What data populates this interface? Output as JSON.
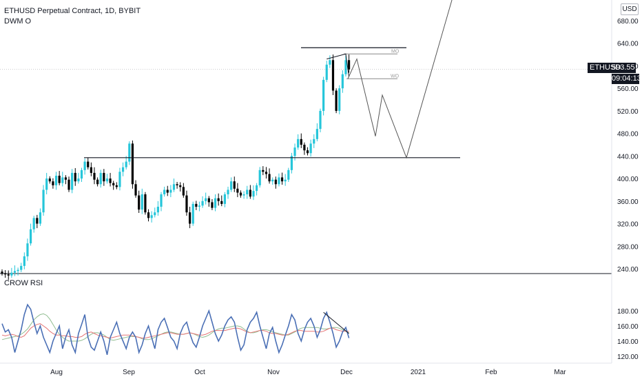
{
  "header": {
    "title": "ETHUSD Perpetual Contract, 1D, BYBIT",
    "indicator": "DWM O",
    "currency": "USD"
  },
  "price_label": {
    "symbol": "ETHUSD",
    "price": "593.55",
    "countdown": "09:04:13"
  },
  "rsi_panel": {
    "title": "CROW RSI"
  },
  "colors": {
    "up": "#26c6da",
    "down": "#000000",
    "rsi_main": "#4a6fb5",
    "rsi_ma1": "#8fbc8f",
    "rsi_ma2": "#e57373",
    "line": "#131722"
  },
  "chart_data": [
    {
      "type": "candlestick",
      "title": "ETHUSD Perpetual Contract, 1D, BYBIT",
      "x_ticks": [
        "Aug",
        "Sep",
        "Oct",
        "Nov",
        "Dec",
        "2021",
        "Feb",
        "Mar"
      ],
      "y_ticks": [
        240,
        280,
        320,
        360,
        400,
        440,
        480,
        520,
        560,
        600,
        640,
        680
      ],
      "ylim": [
        230,
        700
      ],
      "closes": [
        232,
        230,
        228,
        233,
        236,
        238,
        245,
        262,
        285,
        310,
        330,
        320,
        340,
        380,
        400,
        395,
        388,
        405,
        392,
        402,
        398,
        380,
        410,
        395,
        400,
        415,
        430,
        420,
        410,
        398,
        390,
        410,
        395,
        400,
        392,
        388,
        385,
        412,
        420,
        430,
        462,
        390,
        370,
        345,
        372,
        340,
        330,
        335,
        340,
        350,
        372,
        380,
        375,
        380,
        390,
        388,
        385,
        370,
        340,
        320,
        355,
        350,
        352,
        360,
        365,
        358,
        348,
        365,
        360,
        355,
        372,
        380,
        395,
        382,
        375,
        370,
        372,
        380,
        368,
        378,
        388,
        415,
        412,
        408,
        395,
        398,
        390,
        402,
        395,
        398,
        415,
        440,
        455,
        470,
        460,
        450,
        445,
        462,
        470,
        488,
        520,
        575,
        602,
        610,
        556,
        520,
        560,
        585,
        610,
        593.55
      ],
      "levels": [
        {
          "name": "resistance",
          "value": 437
        },
        {
          "name": "top",
          "value": 632
        },
        {
          "name": "MO",
          "value": 621,
          "label": "MO"
        },
        {
          "name": "WO",
          "value": 577,
          "label": "WO"
        }
      ],
      "projection": [
        [
          607,
          492
        ],
        [
          612,
          612
        ],
        [
          625,
          475
        ],
        [
          630,
          548
        ],
        [
          641,
          437
        ],
        [
          661,
          725
        ]
      ],
      "last_price": 593.55
    },
    {
      "type": "line",
      "title": "CROW RSI",
      "y_ticks": [
        120,
        140,
        160,
        180
      ],
      "ylim": [
        115,
        190
      ],
      "series": [
        {
          "values": [
            163,
            152,
            155,
            145,
            125,
            140,
            155,
            175,
            188,
            182,
            165,
            150,
            160,
            145,
            135,
            125,
            140,
            150,
            160,
            130,
            145,
            155,
            135,
            125,
            150,
            162,
            175,
            145,
            132,
            128,
            140,
            152,
            140,
            122,
            145,
            155,
            165,
            150,
            140,
            130,
            145,
            152,
            145,
            125,
            135,
            150,
            160,
            145,
            130,
            155,
            165,
            170,
            158,
            145,
            140,
            130,
            150,
            160,
            165,
            150,
            138,
            132,
            145,
            160,
            170,
            180,
            165,
            150,
            140,
            148,
            160,
            168,
            172,
            165,
            145,
            128,
            135,
            155,
            165,
            170,
            178,
            160,
            145,
            130,
            150,
            158,
            140,
            125,
            135,
            148,
            160,
            175,
            168,
            150,
            140,
            155,
            165,
            170,
            160,
            145,
            155,
            170,
            178,
            165,
            150,
            132,
            140,
            152,
            158,
            144
          ]
        },
        {
          "values": [
            148,
            147,
            148,
            149,
            148,
            146,
            145,
            147,
            152,
            157,
            160,
            162,
            163,
            160,
            157,
            153,
            150,
            148,
            148,
            147,
            147,
            146,
            146,
            145,
            145,
            146,
            149,
            151,
            152,
            150,
            148,
            147,
            146,
            145,
            144,
            145,
            146,
            147,
            148,
            148,
            148,
            147,
            146,
            145,
            144,
            144,
            145,
            146,
            147,
            148,
            149,
            150,
            151,
            151,
            150,
            149,
            149,
            149,
            150,
            151,
            150,
            149,
            148,
            148,
            149,
            151,
            153,
            154,
            154,
            154,
            154,
            155,
            156,
            157,
            157,
            156,
            154,
            152,
            151,
            152,
            153,
            154,
            154,
            153,
            151,
            150,
            150,
            149,
            148,
            148,
            149,
            151,
            153,
            154,
            154,
            153,
            153,
            153,
            153,
            152,
            152,
            153,
            155,
            157,
            157,
            155,
            154,
            153,
            153,
            153
          ]
        }
      ],
      "secondary": [
        {
          "values": [
            142,
            143,
            144,
            145,
            146,
            147,
            149,
            152,
            156,
            162,
            168,
            172,
            175,
            176,
            174,
            169,
            162,
            155,
            149,
            145,
            142,
            140,
            140,
            140,
            140,
            141,
            143,
            146,
            149,
            151,
            151,
            150,
            148,
            145,
            142,
            141,
            142,
            143,
            144,
            145,
            146,
            146,
            146,
            145,
            143,
            142,
            142,
            143,
            145,
            147,
            149,
            151,
            152,
            152,
            151,
            150,
            149,
            149,
            150,
            151,
            150,
            148,
            146,
            145,
            146,
            148,
            151,
            154,
            156,
            157,
            157,
            158,
            159,
            160,
            160,
            159,
            156,
            153,
            151,
            151,
            152,
            154,
            155,
            155,
            154,
            152,
            151,
            150,
            149,
            148,
            148,
            150,
            152,
            155,
            157,
            158,
            158,
            158,
            158,
            158,
            157,
            156,
            156,
            157,
            158,
            158,
            157,
            155,
            153,
            151
          ]
        }
      ]
    }
  ],
  "dates": {
    "labels": [
      "Aug",
      "Sep",
      "Oct",
      "Nov",
      "Dec",
      "2021",
      "Feb",
      "Mar"
    ]
  }
}
